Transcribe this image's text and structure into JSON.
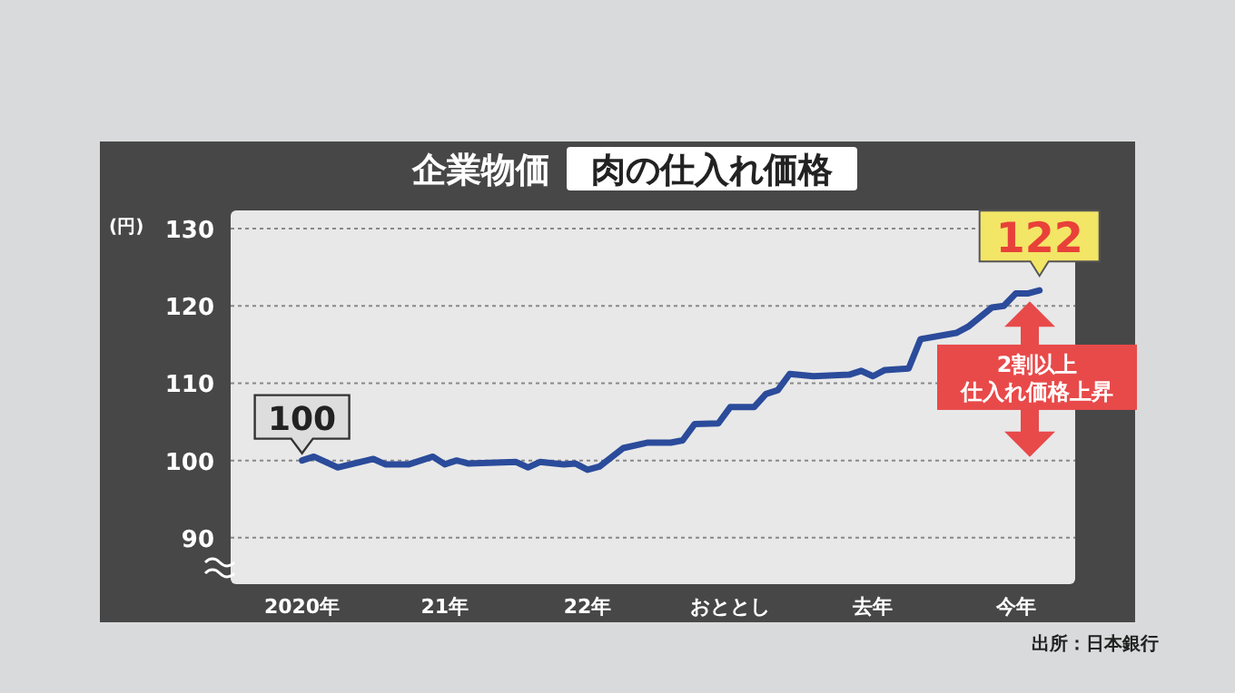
{
  "chart_data": {
    "type": "line",
    "title": "企業物価",
    "subtitle": "肉の仕入れ価格",
    "ylabel": "(円)",
    "x": [
      "2020-01",
      "2020-02",
      "2020-04",
      "2020-07",
      "2020-08",
      "2020-10",
      "2020-12",
      "2021-01",
      "2021-02",
      "2021-03",
      "2021-07",
      "2021-08",
      "2021-09",
      "2021-11",
      "2021-12",
      "2022-01",
      "2022-02",
      "2022-04",
      "2022-06",
      "2022-08",
      "2022-09",
      "2022-10",
      "2022-12",
      "2023-01",
      "2023-03",
      "2023-04",
      "2023-05",
      "2023-06",
      "2023-08",
      "2023-11",
      "2023-12",
      "2024-01",
      "2024-02",
      "2024-04",
      "2024-05",
      "2024-08",
      "2024-09",
      "2024-11",
      "2024-12",
      "2025-01",
      "2025-02",
      "2025-03"
    ],
    "series": [
      {
        "color": "#2b4b9b",
        "values": [
          100,
          100.5,
          99.1,
          100.2,
          99.5,
          99.5,
          100.5,
          99.5,
          100,
          99.6,
          99.8,
          99.1,
          99.8,
          99.5,
          99.6,
          98.8,
          99.2,
          101.6,
          102.3,
          102.3,
          102.6,
          104.7,
          104.8,
          106.9,
          106.9,
          108.6,
          109.1,
          111.2,
          110.9,
          111.1,
          111.6,
          110.9,
          111.7,
          111.9,
          115.7,
          116.5,
          117.3,
          119.8,
          120,
          121.6,
          121.6,
          122
        ]
      }
    ],
    "xlim": [
      "2019-07",
      "2025-06"
    ],
    "xticks": [
      {
        "value": "2020-01",
        "label": "2020年"
      },
      {
        "value": "2021-01",
        "label": "21年"
      },
      {
        "value": "2022-01",
        "label": "22年"
      },
      {
        "value": "2023-01",
        "label": "おととし"
      },
      {
        "value": "2024-01",
        "label": "去年"
      },
      {
        "value": "2025-01",
        "label": "今年"
      }
    ],
    "ylim": [
      84,
      130
    ],
    "yticks": [
      90,
      100,
      110,
      120,
      130
    ],
    "grid": "y",
    "line_style": "solid",
    "marker": "none",
    "annotations": [
      {
        "text": "100",
        "x": "2020-01",
        "y": 100
      },
      {
        "text": "122",
        "x": "2025-03",
        "y": 122
      },
      "2割以上",
      "仕入れ価格上昇",
      "出所：日本銀行"
    ]
  }
}
